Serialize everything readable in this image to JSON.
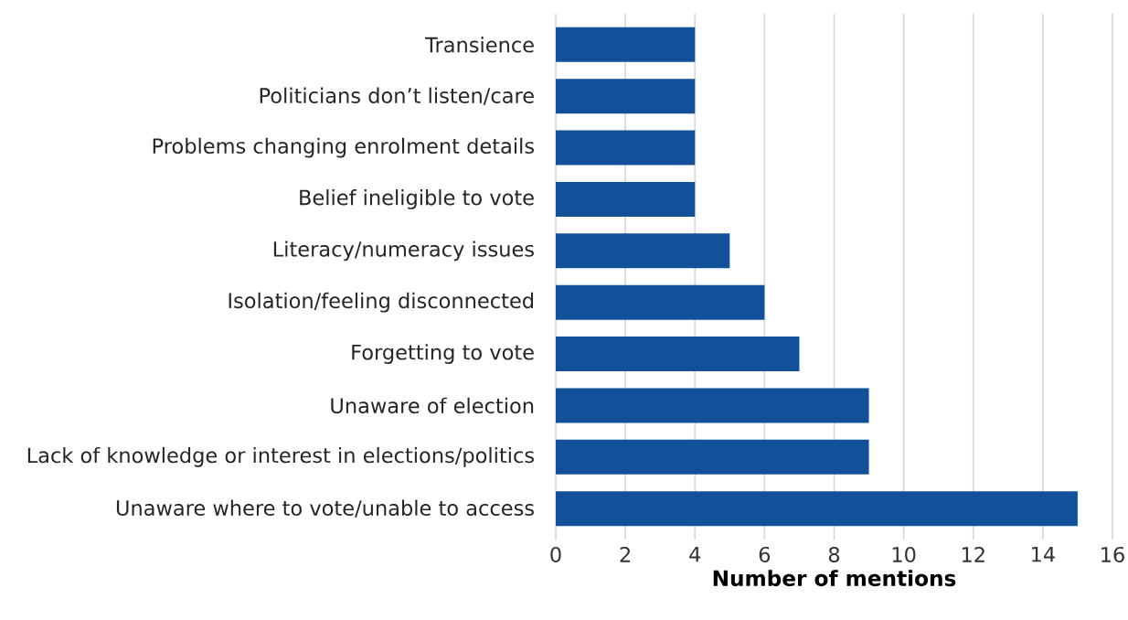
{
  "chart_data": {
    "type": "bar",
    "orientation": "horizontal",
    "xlabel": "Number of mentions",
    "categories": [
      "Transience",
      "Politicians don’t listen/care",
      "Problems changing enrolment details",
      "Belief ineligible to vote",
      "Literacy/numeracy issues",
      "Isolation/feeling disconnected",
      "Forgetting to vote",
      "Unaware of election",
      "Lack of knowledge or interest in elections/politics",
      "Unaware where to vote/unable to access"
    ],
    "values": [
      4,
      4,
      4,
      4,
      5,
      6,
      7,
      9,
      9,
      15
    ],
    "color": "#13509a",
    "xlim": [
      0,
      16
    ],
    "xticks": [
      0,
      2,
      4,
      6,
      8,
      10,
      12,
      14,
      16
    ],
    "grid": "x"
  }
}
